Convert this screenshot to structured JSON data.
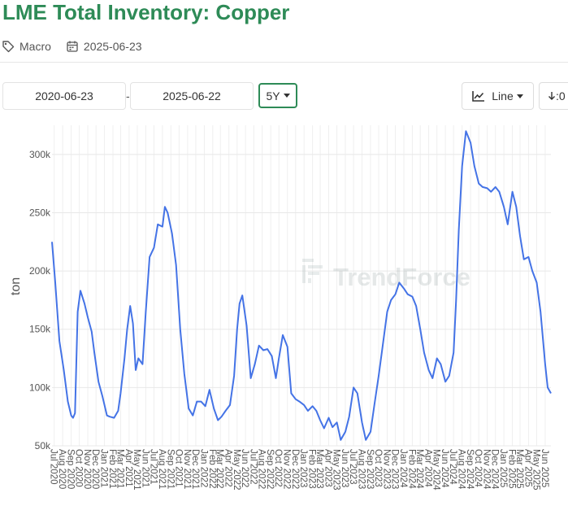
{
  "page": {
    "title": "LME Total Inventory: Copper",
    "category": "Macro",
    "date": "2025-06-23",
    "tag_icon": "tag-icon",
    "calendar_icon": "calendar-icon"
  },
  "controls": {
    "start_date": "2020-06-23",
    "separator": "-",
    "end_date": "2025-06-22",
    "period": "5Y",
    "chart_type": "Line",
    "download_label": ":0",
    "accent_color": "#2e8b57"
  },
  "watermark": "TrendForce",
  "chart_data": {
    "type": "line",
    "title": "",
    "xlabel": "",
    "ylabel": "ton",
    "ylim": [
      50000,
      325000
    ],
    "yticks": [
      50000,
      100000,
      150000,
      200000,
      250000,
      300000
    ],
    "ytick_labels": [
      "50k",
      "100k",
      "150k",
      "200k",
      "250k",
      "300k"
    ],
    "grid": true,
    "line_color": "#4473e6",
    "xticks": [
      "2020-07-01",
      "2020-08-01",
      "2020-09-01",
      "2020-10-01",
      "2020-11-01",
      "2020-12-01",
      "2021-01-01",
      "2021-02-01",
      "2021-03-01",
      "2021-04-01",
      "2021-05-01",
      "2021-06-01",
      "2021-07-01",
      "2021-08-01",
      "2021-09-01",
      "2021-10-01",
      "2021-11-01",
      "2021-12-01",
      "2022-01-01",
      "2022-02-01",
      "2022-03-01",
      "2022-04-01",
      "2022-05-01",
      "2022-06-01",
      "2022-07-01",
      "2022-08-01",
      "2022-09-01",
      "2022-10-01",
      "2022-11-01",
      "2022-12-01",
      "2023-01-01",
      "2023-02-01",
      "2023-03-01",
      "2023-04-01",
      "2023-05-01",
      "2023-06-01",
      "2023-07-01",
      "2023-08-01",
      "2023-09-01",
      "2023-10-01",
      "2023-11-01",
      "2023-12-01",
      "2024-01-01",
      "2024-02-01",
      "2024-03-01",
      "2024-04-01",
      "2024-05-01",
      "2024-06-01",
      "2024-07-01",
      "2024-08-01",
      "2024-09-01",
      "2024-10-01",
      "2024-11-01",
      "2024-12-01",
      "2025-01-01",
      "2025-02-01",
      "2025-03-01",
      "2025-04-01",
      "2025-05-01",
      "2025-06-01"
    ],
    "xtick_labels": [
      "Jul 2020",
      "Aug 2020",
      "Sep 2020",
      "Oct 2020",
      "Nov 2020",
      "Dec 2020",
      "Jan 2021",
      "Feb 2021",
      "Mar 2021",
      "Apr 2021",
      "May 2021",
      "Jun 2021",
      "Jul 2021",
      "Aug 2021",
      "Sep 2021",
      "Oct 2021",
      "Nov 2021",
      "Dec 2021",
      "Jan 2022",
      "Feb 2022",
      "Mar 2022",
      "Apr 2022",
      "May 2022",
      "Jun 2022",
      "Jul 2022",
      "Aug 2022",
      "Sep 2022",
      "Oct 2022",
      "Nov 2022",
      "Dec 2022",
      "Jan 2023",
      "Feb 2023",
      "Mar 2023",
      "Apr 2023",
      "May 2023",
      "Jun 2023",
      "Jul 2023",
      "Aug 2023",
      "Sep 2023",
      "Oct 2023",
      "Nov 2023",
      "Dec 2023",
      "Jan 2024",
      "Feb 2024",
      "Mar 2024",
      "Apr 2024",
      "May 2024",
      "Jun 2024",
      "Jul 2024",
      "Aug 2024",
      "Sep 2024",
      "Oct 2024",
      "Nov 2024",
      "Dec 2024",
      "Jan 2025",
      "Feb 2025",
      "Mar 2025",
      "Apr 2025",
      "May 2025",
      "Jun 2025"
    ],
    "x_range": [
      "2020-06-23",
      "2025-06-22"
    ],
    "series": [
      {
        "x": [
          "2020-06-23",
          "2020-07-05",
          "2020-07-20",
          "2020-08-05",
          "2020-08-20",
          "2020-09-01",
          "2020-09-08",
          "2020-09-15",
          "2020-09-25",
          "2020-10-05",
          "2020-10-20",
          "2020-11-01",
          "2020-11-15",
          "2020-11-25",
          "2020-12-10",
          "2020-12-25",
          "2021-01-10",
          "2021-01-20",
          "2021-02-05",
          "2021-02-20",
          "2021-03-01",
          "2021-03-15",
          "2021-03-25",
          "2021-04-05",
          "2021-04-15",
          "2021-04-25",
          "2021-05-05",
          "2021-05-20",
          "2021-06-01",
          "2021-06-15",
          "2021-07-01",
          "2021-07-15",
          "2021-08-01",
          "2021-08-10",
          "2021-08-20",
          "2021-09-05",
          "2021-09-20",
          "2021-10-05",
          "2021-10-20",
          "2021-11-05",
          "2021-11-20",
          "2021-12-05",
          "2021-12-20",
          "2022-01-05",
          "2022-01-20",
          "2022-02-05",
          "2022-02-20",
          "2022-03-05",
          "2022-03-20",
          "2022-04-05",
          "2022-04-20",
          "2022-05-01",
          "2022-05-10",
          "2022-05-20",
          "2022-06-05",
          "2022-06-20",
          "2022-07-05",
          "2022-07-20",
          "2022-08-05",
          "2022-08-20",
          "2022-09-05",
          "2022-09-20",
          "2022-10-01",
          "2022-10-15",
          "2022-11-01",
          "2022-11-15",
          "2022-12-01",
          "2022-12-15",
          "2023-01-01",
          "2023-01-15",
          "2023-02-01",
          "2023-02-15",
          "2023-03-01",
          "2023-03-15",
          "2023-04-01",
          "2023-04-15",
          "2023-05-01",
          "2023-05-15",
          "2023-06-01",
          "2023-06-15",
          "2023-07-01",
          "2023-07-15",
          "2023-08-01",
          "2023-08-15",
          "2023-09-01",
          "2023-09-15",
          "2023-10-01",
          "2023-10-15",
          "2023-11-01",
          "2023-11-15",
          "2023-12-01",
          "2023-12-15",
          "2024-01-01",
          "2024-01-15",
          "2024-02-01",
          "2024-02-15",
          "2024-03-01",
          "2024-03-15",
          "2024-04-01",
          "2024-04-15",
          "2024-05-01",
          "2024-05-15",
          "2024-06-01",
          "2024-06-15",
          "2024-07-01",
          "2024-07-10",
          "2024-07-20",
          "2024-08-01",
          "2024-08-15",
          "2024-09-01",
          "2024-09-15",
          "2024-10-01",
          "2024-10-15",
          "2024-11-01",
          "2024-11-15",
          "2024-12-01",
          "2024-12-15",
          "2025-01-01",
          "2025-01-15",
          "2025-02-01",
          "2025-02-15",
          "2025-03-01",
          "2025-03-15",
          "2025-04-01",
          "2025-04-15",
          "2025-05-01",
          "2025-05-15",
          "2025-06-01",
          "2025-06-10",
          "2025-06-22"
        ],
        "values": [
          225000,
          190000,
          140000,
          115000,
          88000,
          76000,
          74000,
          78000,
          165000,
          183000,
          172000,
          160000,
          148000,
          130000,
          105000,
          92000,
          76000,
          75000,
          74000,
          80000,
          95000,
          125000,
          150000,
          170000,
          155000,
          115000,
          125000,
          120000,
          165000,
          212000,
          220000,
          240000,
          238000,
          255000,
          250000,
          232000,
          205000,
          150000,
          112000,
          82000,
          76000,
          88000,
          88000,
          84000,
          98000,
          82000,
          72000,
          75000,
          80000,
          85000,
          110000,
          150000,
          172000,
          179000,
          153000,
          108000,
          120000,
          136000,
          132000,
          133000,
          127000,
          108000,
          125000,
          145000,
          135000,
          95000,
          90000,
          88000,
          85000,
          80000,
          84000,
          80000,
          72000,
          65000,
          74000,
          66000,
          70000,
          55000,
          62000,
          75000,
          100000,
          95000,
          70000,
          55000,
          62000,
          85000,
          110000,
          135000,
          165000,
          175000,
          180000,
          190000,
          185000,
          180000,
          178000,
          170000,
          150000,
          130000,
          115000,
          108000,
          125000,
          120000,
          105000,
          110000,
          130000,
          175000,
          235000,
          290000,
          320000,
          310000,
          290000,
          275000,
          272000,
          271000,
          268000,
          272000,
          268000,
          255000,
          240000,
          268000,
          255000,
          230000,
          210000,
          212000,
          200000,
          190000,
          165000,
          120000,
          100000,
          95000
        ]
      }
    ]
  }
}
